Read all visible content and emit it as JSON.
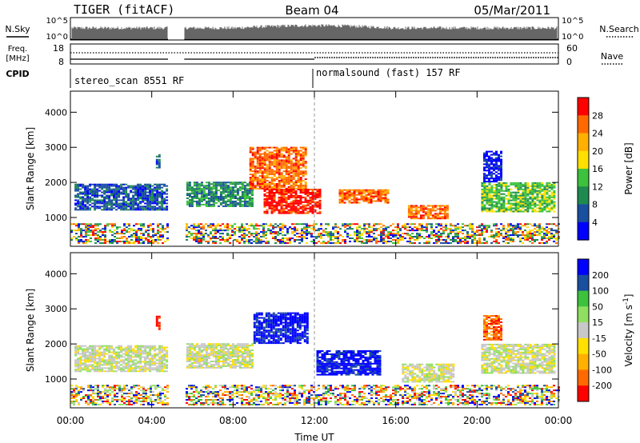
{
  "header": {
    "radar": "TIGER (fitACF)",
    "beam": "Beam 04",
    "date": "05/Mar/2011"
  },
  "top_panels": {
    "nsky": {
      "label": "N.Sky",
      "tick_hi": "10^5",
      "tick_lo": "10^0"
    },
    "nsearch": {
      "label": "N.Search",
      "tick_hi": "10^5",
      "tick_lo": "10^0"
    },
    "freq": {
      "label_line1": "Freq.",
      "label_line2": "[MHz]",
      "tick_hi": "18",
      "tick_lo": "8"
    },
    "nave": {
      "label": "Nave",
      "tick_hi": "60",
      "tick_lo": "0"
    },
    "cpid": {
      "label": "CPID"
    }
  },
  "modes": [
    {
      "name": "stereo_scan",
      "id": "8551",
      "tag": "RF",
      "start_hour": 0
    },
    {
      "name": "normalsound (fast)",
      "id": "157",
      "tag": "RF",
      "start_hour": 12
    }
  ],
  "chart_data": [
    {
      "type": "heatmap",
      "title": "",
      "xlabel": "Time UT",
      "ylabel": "Slant Range [km]",
      "x_ticks": [
        "00:00",
        "04:00",
        "08:00",
        "12:00",
        "16:00",
        "20:00",
        "00:00"
      ],
      "x_tick_hours": [
        0,
        4,
        8,
        12,
        16,
        20,
        24
      ],
      "y_ticks": [
        1000,
        2000,
        3000,
        4000
      ],
      "xlim_hours": [
        0,
        24
      ],
      "ylim": [
        180,
        4600
      ],
      "data_gap_hours": [
        4.8,
        5.6
      ],
      "colorbar": {
        "label": "Power [dB]",
        "ticks": [
          "28",
          "24",
          "20",
          "16",
          "12",
          "8",
          "4"
        ],
        "colors": [
          "#ff0000",
          "#ff6a00",
          "#ffb000",
          "#ffe000",
          "#3cc23c",
          "#1f8a50",
          "#1a4fa0",
          "#0000ff"
        ]
      },
      "regions": [
        {
          "x": [
            0.2,
            4.7
          ],
          "y": [
            1200,
            1950
          ],
          "level": 6
        },
        {
          "x": [
            5.7,
            9.0
          ],
          "y": [
            1300,
            2000
          ],
          "level": 5
        },
        {
          "x": [
            8.8,
            11.6
          ],
          "y": [
            1800,
            3000
          ],
          "level": 1
        },
        {
          "x": [
            9.5,
            12.3
          ],
          "y": [
            1100,
            1800
          ],
          "level": 0
        },
        {
          "x": [
            13.2,
            15.6
          ],
          "y": [
            1400,
            1800
          ],
          "level": 1
        },
        {
          "x": [
            16.6,
            18.5
          ],
          "y": [
            950,
            1350
          ],
          "level": 1
        },
        {
          "x": [
            20.2,
            23.8
          ],
          "y": [
            1150,
            2000
          ],
          "level": 4
        },
        {
          "x": [
            4.2,
            4.4
          ],
          "y": [
            2400,
            2800
          ],
          "level": 6
        },
        {
          "x": [
            20.3,
            21.2
          ],
          "y": [
            2000,
            2900
          ],
          "level": 7
        }
      ]
    },
    {
      "type": "heatmap",
      "title": "",
      "xlabel": "Time UT",
      "ylabel": "Slant Range [km]",
      "x_ticks": [
        "00:00",
        "04:00",
        "08:00",
        "12:00",
        "16:00",
        "20:00",
        "00:00"
      ],
      "x_tick_hours": [
        0,
        4,
        8,
        12,
        16,
        20,
        24
      ],
      "y_ticks": [
        1000,
        2000,
        3000,
        4000
      ],
      "xlim_hours": [
        0,
        24
      ],
      "ylim": [
        180,
        4600
      ],
      "data_gap_hours": [
        4.8,
        5.6
      ],
      "colorbar": {
        "label": "Velocity [m s^-1]",
        "ticks": [
          "200",
          "100",
          "50",
          "15",
          "-15",
          "-50",
          "-100",
          "-200"
        ],
        "colors": [
          "#0000ff",
          "#1a4fa0",
          "#3cc23c",
          "#8fe060",
          "#c8c8c8",
          "#ffe000",
          "#ffb000",
          "#ff6a00",
          "#ff0000"
        ]
      },
      "regions": [
        {
          "x": [
            0.2,
            4.7
          ],
          "y": [
            1200,
            1950
          ],
          "level": 4
        },
        {
          "x": [
            5.7,
            9.0
          ],
          "y": [
            1300,
            2000
          ],
          "level": 4
        },
        {
          "x": [
            9.0,
            11.6
          ],
          "y": [
            2000,
            2900
          ],
          "level": 0
        },
        {
          "x": [
            12.1,
            15.2
          ],
          "y": [
            1100,
            1800
          ],
          "level": 0
        },
        {
          "x": [
            16.3,
            18.8
          ],
          "y": [
            900,
            1400
          ],
          "level": 4
        },
        {
          "x": [
            20.2,
            23.8
          ],
          "y": [
            1150,
            2000
          ],
          "level": 4
        },
        {
          "x": [
            4.2,
            4.4
          ],
          "y": [
            2400,
            2800
          ],
          "level": 8
        },
        {
          "x": [
            20.3,
            21.2
          ],
          "y": [
            2100,
            2800
          ],
          "level": 7
        }
      ]
    }
  ]
}
